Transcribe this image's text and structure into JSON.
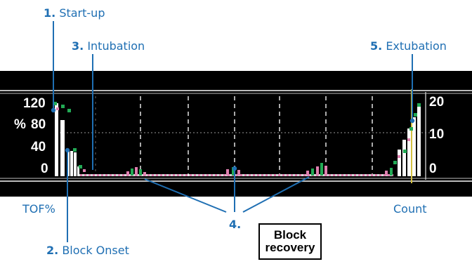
{
  "annotations": {
    "a1": {
      "num": "1.",
      "text": "Start-up"
    },
    "a2": {
      "num": "2.",
      "text": "Block Onset"
    },
    "a3": {
      "num": "3.",
      "text": "Intubation"
    },
    "a4": {
      "num": "4.",
      "text": ""
    },
    "a5": {
      "num": "5.",
      "text": "Extubation"
    }
  },
  "axis": {
    "left_unit": "%",
    "left_ticks": [
      "120",
      "80",
      "40",
      "0"
    ],
    "right_ticks": [
      "20",
      "10",
      "0"
    ],
    "left_caption": "TOF%",
    "right_caption": "Count"
  },
  "box": {
    "line1": "Block",
    "line2": "recovery"
  },
  "colors": {
    "annotation": "#1f6fb3",
    "monitor_bg": "#000000",
    "bars": "#ffffff",
    "tof_marker": "#22aa55",
    "count_marker": "#e080b0"
  }
}
